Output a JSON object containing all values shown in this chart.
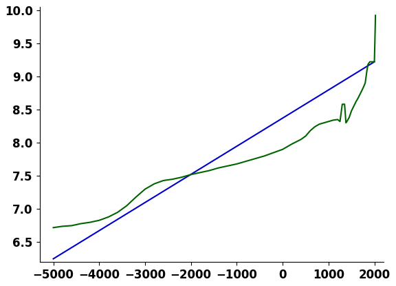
{
  "title": "",
  "xlabel": "",
  "ylabel": "",
  "xlim": [
    -5300,
    2200
  ],
  "ylim": [
    6.2,
    10.05
  ],
  "xticks": [
    -5000,
    -4000,
    -3000,
    -2000,
    -1000,
    0,
    1000,
    2000
  ],
  "yticks": [
    6.5,
    7.0,
    7.5,
    8.0,
    8.5,
    9.0,
    9.5,
    10.0
  ],
  "background_color": "#ffffff",
  "green_line_color": "#006400",
  "blue_line_color": "#0000cd",
  "green_data": [
    [
      -5000,
      6.72
    ],
    [
      -4800,
      6.74
    ],
    [
      -4600,
      6.75
    ],
    [
      -4400,
      6.78
    ],
    [
      -4200,
      6.8
    ],
    [
      -4000,
      6.83
    ],
    [
      -3800,
      6.88
    ],
    [
      -3600,
      6.95
    ],
    [
      -3400,
      7.05
    ],
    [
      -3200,
      7.18
    ],
    [
      -3000,
      7.3
    ],
    [
      -2800,
      7.38
    ],
    [
      -2600,
      7.43
    ],
    [
      -2400,
      7.45
    ],
    [
      -2200,
      7.48
    ],
    [
      -2000,
      7.52
    ],
    [
      -1800,
      7.55
    ],
    [
      -1600,
      7.58
    ],
    [
      -1400,
      7.62
    ],
    [
      -1200,
      7.65
    ],
    [
      -1000,
      7.68
    ],
    [
      -800,
      7.72
    ],
    [
      -600,
      7.76
    ],
    [
      -400,
      7.8
    ],
    [
      -200,
      7.85
    ],
    [
      0,
      7.9
    ],
    [
      200,
      7.98
    ],
    [
      400,
      8.05
    ],
    [
      500,
      8.1
    ],
    [
      600,
      8.18
    ],
    [
      700,
      8.24
    ],
    [
      800,
      8.28
    ],
    [
      900,
      8.3
    ],
    [
      1000,
      8.32
    ],
    [
      1100,
      8.34
    ],
    [
      1200,
      8.35
    ],
    [
      1250,
      8.32
    ],
    [
      1300,
      8.58
    ],
    [
      1350,
      8.58
    ],
    [
      1380,
      8.3
    ],
    [
      1400,
      8.32
    ],
    [
      1450,
      8.38
    ],
    [
      1500,
      8.48
    ],
    [
      1550,
      8.55
    ],
    [
      1600,
      8.62
    ],
    [
      1650,
      8.68
    ],
    [
      1700,
      8.75
    ],
    [
      1750,
      8.82
    ],
    [
      1800,
      8.9
    ],
    [
      1820,
      9.0
    ],
    [
      1840,
      9.1
    ],
    [
      1860,
      9.18
    ],
    [
      1880,
      9.2
    ],
    [
      1900,
      9.22
    ],
    [
      1950,
      9.22
    ],
    [
      1980,
      9.22
    ],
    [
      2000,
      9.22
    ],
    [
      2010,
      9.5
    ],
    [
      2020,
      9.8
    ],
    [
      2023,
      9.92
    ]
  ],
  "blue_line_endpoints": [
    [
      -5000,
      6.25
    ],
    [
      2000,
      9.22
    ]
  ]
}
